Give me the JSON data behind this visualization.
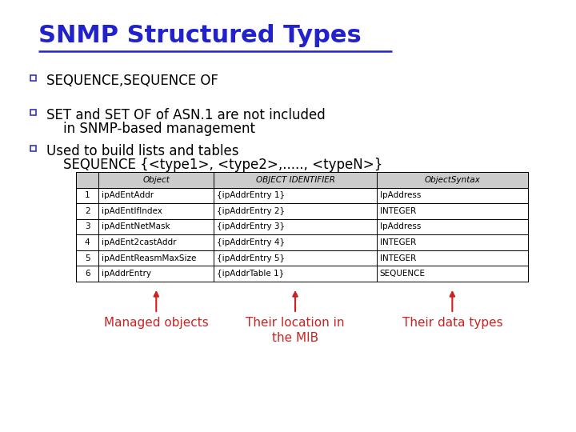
{
  "title": "SNMP Structured Types",
  "title_color": "#2222CC",
  "title_fontsize": 22,
  "background_color": "#FFFFFF",
  "bullet_color": "#3333BB",
  "bullet_text_color": "#000000",
  "bullet_fontsize": 12,
  "bullet_font": "DejaVu Sans",
  "bullets": [
    [
      "SEQUENCE,SEQUENCE OF"
    ],
    [
      "SET and SET OF of ASN.1 are not included",
      "    in SNMP-based management"
    ],
    [
      "Used to build lists and tables",
      "    SEQUENCE {<type1>, <type2>,....., <typeN>}"
    ]
  ],
  "table_headers": [
    "",
    "Object",
    "OBJECT IDENTIFIER",
    "ObjectSyntax"
  ],
  "table_rows": [
    [
      "1",
      "ipAdEntAddr",
      "{ipAddrEntry 1}",
      "IpAddress"
    ],
    [
      "2",
      "ipAdEntIfIndex",
      "{ipAddrEntry 2}",
      "INTEGER"
    ],
    [
      "3",
      "ipAdEntNetMask",
      "{ipAddrEntry 3}",
      "IpAddress"
    ],
    [
      "4",
      "ipAdEnt2castAddr",
      "{ipAddrEntry 4}",
      "INTEGER"
    ],
    [
      "5",
      "ipAdEntReasmMaxSize",
      "{ipAddrEntry 5}",
      "INTEGER"
    ],
    [
      "6",
      "ipAddrEntry",
      "{ipAddrTable 1}",
      "SEQUENCE"
    ]
  ],
  "table_fontsize": 7.5,
  "annotation_color": "#CC2222",
  "annotation_fontsize": 11,
  "annotations": [
    {
      "text": "Managed objects",
      "col": 1
    },
    {
      "text": "Their location in\nthe MIB",
      "col": 2
    },
    {
      "text": "Their data types",
      "col": 3
    }
  ]
}
